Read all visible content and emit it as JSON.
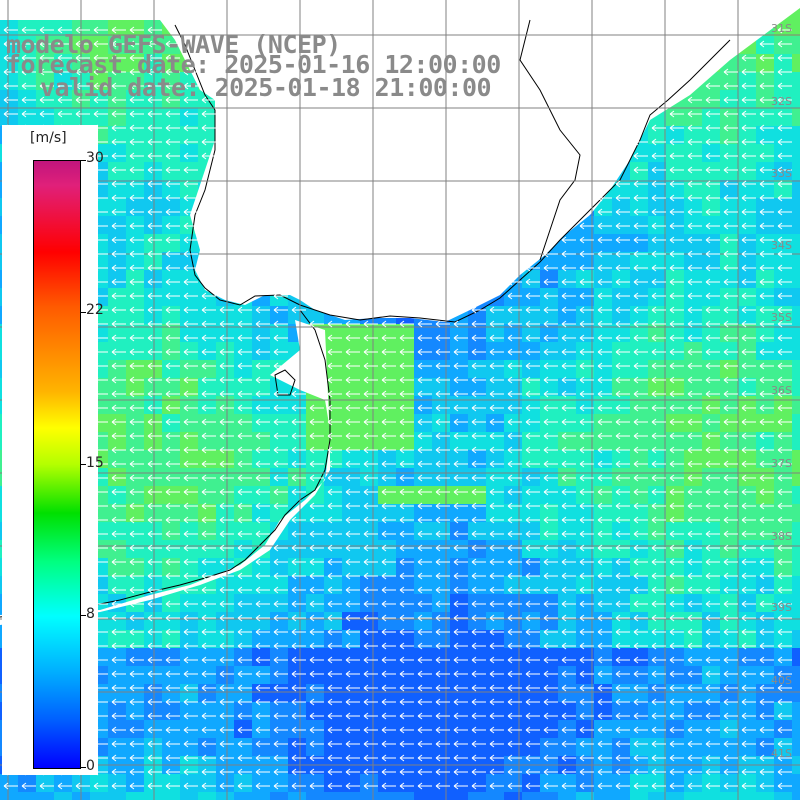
{
  "title": {
    "line1": "modelo GEFS-WAVE (NCEP)",
    "line2": "forecast date: 2025-01-16 12:00:00",
    "line3": "valid date: 2025-01-18 21:00:00"
  },
  "legend": {
    "unit": "[m/s]",
    "ticks": [
      "30",
      "22",
      "15",
      "8",
      "0"
    ],
    "tick_values": [
      30,
      22,
      15,
      8,
      0
    ],
    "colors": [
      "#0000ff",
      "#00b0ff",
      "#00ffff",
      "#00ff80",
      "#00e000",
      "#ffff00",
      "#ff5a00",
      "#ff0000",
      "#c0157d"
    ]
  },
  "map": {
    "lat_labels": [
      "31S",
      "32S",
      "33S",
      "34S",
      "35S",
      "36S",
      "37S",
      "38S",
      "39S",
      "40S",
      "41S"
    ],
    "lat_values": [
      -31,
      -32,
      -33,
      -34,
      -35,
      -36,
      -37,
      -38,
      -39,
      -40,
      -41
    ],
    "arrow_direction": "westward",
    "land_color": "#ffffff",
    "coast_color": "#000000",
    "grid_color": "#808080"
  }
}
